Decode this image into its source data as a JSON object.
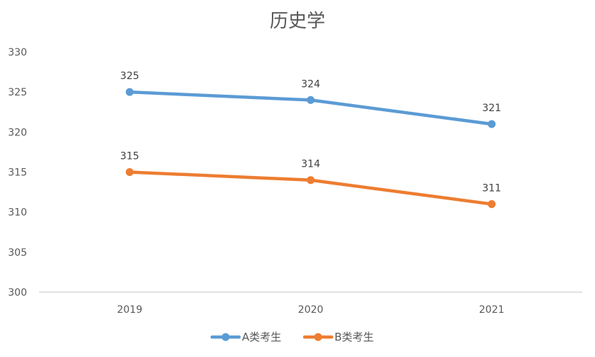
{
  "chart_data": {
    "type": "line",
    "title": "历史学",
    "xlabel": "",
    "ylabel": "",
    "categories": [
      "2019",
      "2020",
      "2021"
    ],
    "ylim": [
      300,
      330
    ],
    "yticks": [
      300,
      305,
      310,
      315,
      320,
      325,
      330
    ],
    "grid": false,
    "legend_position": "bottom",
    "series": [
      {
        "name": "A类考生",
        "color": "#5b9bd5",
        "values": [
          325,
          324,
          321
        ]
      },
      {
        "name": "B类考生",
        "color": "#ed7d31",
        "values": [
          315,
          314,
          311
        ]
      }
    ]
  }
}
